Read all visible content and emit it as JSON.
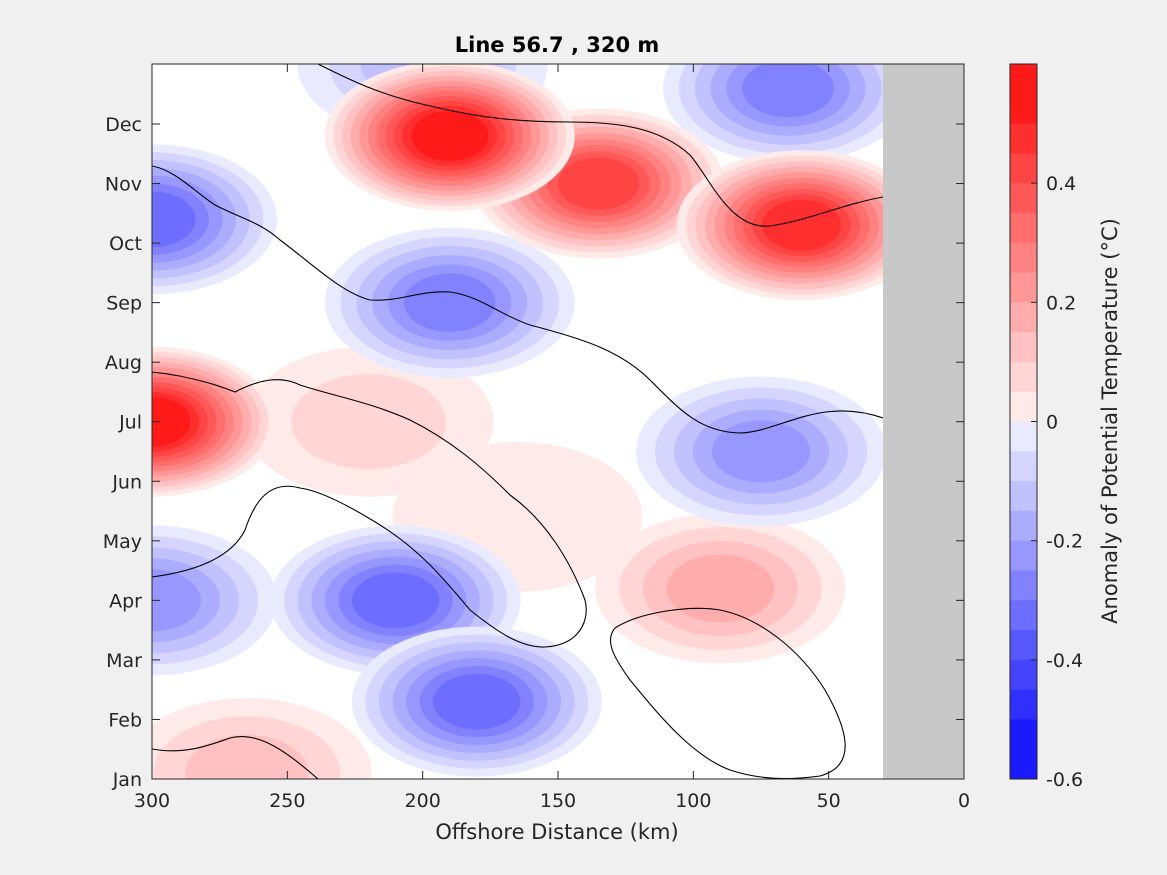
{
  "chart_data": {
    "type": "heatmap",
    "subtype": "filled-contour",
    "title": "Line 56.7 , 320 m",
    "xlabel": "Offshore Distance (km)",
    "ylabel": "",
    "xlim": [
      300,
      0
    ],
    "x_ticks": [
      300,
      250,
      200,
      150,
      100,
      50,
      0
    ],
    "y_ticks": [
      "Jan",
      "Feb",
      "Mar",
      "Apr",
      "May",
      "Jun",
      "Jul",
      "Aug",
      "Sep",
      "Oct",
      "Nov",
      "Dec"
    ],
    "no_data_region_km": [
      30,
      0
    ],
    "no_data_color": "#c8c8c8",
    "zero_contour": "black line",
    "colorbar": {
      "label": "Anomaly of Potential Temperature (°C)",
      "range": [
        -0.6,
        0.6
      ],
      "step": 0.05,
      "ticks": [
        -0.6,
        -0.4,
        -0.2,
        0,
        0.2,
        0.4
      ],
      "tick_labels": [
        "-0.6",
        "-0.4",
        "-0.2",
        "0",
        "0.2",
        "0.4"
      ],
      "colormap": "blue-white-red"
    },
    "features": [
      {
        "sign": "positive",
        "x_km": 190,
        "month": 10.8,
        "peak": 0.55
      },
      {
        "sign": "positive",
        "x_km": 135,
        "month": 10.0,
        "peak": 0.45
      },
      {
        "sign": "positive",
        "x_km": 60,
        "month": 9.3,
        "peak": 0.5
      },
      {
        "sign": "positive",
        "x_km": 300,
        "month": 6.0,
        "peak": 0.55
      },
      {
        "sign": "positive",
        "x_km": 265,
        "month": 0.1,
        "peak": 0.15
      },
      {
        "sign": "positive",
        "x_km": 220,
        "month": 6.0,
        "peak": 0.12
      },
      {
        "sign": "positive",
        "x_km": 165,
        "month": 4.4,
        "peak": 0.05
      },
      {
        "sign": "positive",
        "x_km": 90,
        "month": 3.2,
        "peak": 0.22
      },
      {
        "sign": "negative",
        "x_km": 300,
        "month": 9.4,
        "peak": -0.35
      },
      {
        "sign": "negative",
        "x_km": 190,
        "month": 8.0,
        "peak": -0.3
      },
      {
        "sign": "negative",
        "x_km": 65,
        "month": 11.6,
        "peak": -0.3
      },
      {
        "sign": "negative",
        "x_km": 200,
        "month": 12.0,
        "peak": -0.15
      },
      {
        "sign": "negative",
        "x_km": 75,
        "month": 5.5,
        "peak": -0.25
      },
      {
        "sign": "negative",
        "x_km": 210,
        "month": 3.0,
        "peak": -0.35
      },
      {
        "sign": "negative",
        "x_km": 180,
        "month": 1.3,
        "peak": -0.35
      },
      {
        "sign": "negative",
        "x_km": 300,
        "month": 3.0,
        "peak": -0.25
      }
    ]
  }
}
